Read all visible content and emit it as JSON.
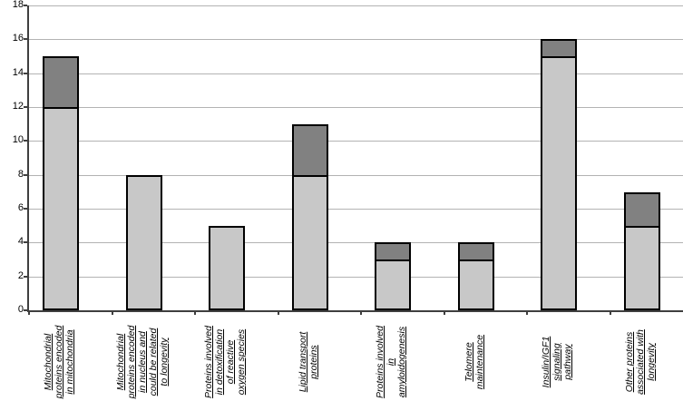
{
  "chart_data": {
    "type": "bar",
    "stacked": true,
    "title": "",
    "xlabel": "",
    "ylabel": "",
    "categories": [
      "Mitochondrial\nproteins encoded\nin mitochondria",
      "Mitochondrial\nproteins encoded\nin nucleus and\ncould be related\nto longevity",
      "Proteins involved\nin detoxification\nof reactive\noxygen species",
      "Lipid transport\nproteins",
      "Proteins involved\nin\namyloidogenesis",
      "Telomere\nmaintenance",
      "Insulin/IGF1\nsignaling\npathway",
      "Other proteins\nassociated with\nlongevity"
    ],
    "series": [
      {
        "name": "lower-light-gray-segment",
        "color": "#c8c8c8",
        "values": [
          12,
          8,
          5,
          8,
          3,
          3,
          15,
          5
        ]
      },
      {
        "name": "upper-dark-gray-segment",
        "color": "#818181",
        "values": [
          3,
          0,
          0,
          3,
          1,
          1,
          1,
          2
        ]
      }
    ],
    "totals": [
      15,
      8,
      5,
      11,
      4,
      4,
      16,
      7
    ],
    "ylim": [
      0,
      18
    ],
    "yticks": [
      0,
      2,
      4,
      6,
      8,
      10,
      12,
      14,
      16,
      18
    ],
    "grid": true,
    "legend": false,
    "colors": {
      "bar_light": "#c8c8c8",
      "bar_dark": "#818181",
      "bar_border": "#000000",
      "gridline": "#b3b3b3",
      "axis": "#3f3f3f",
      "background": "#ffffff"
    }
  }
}
